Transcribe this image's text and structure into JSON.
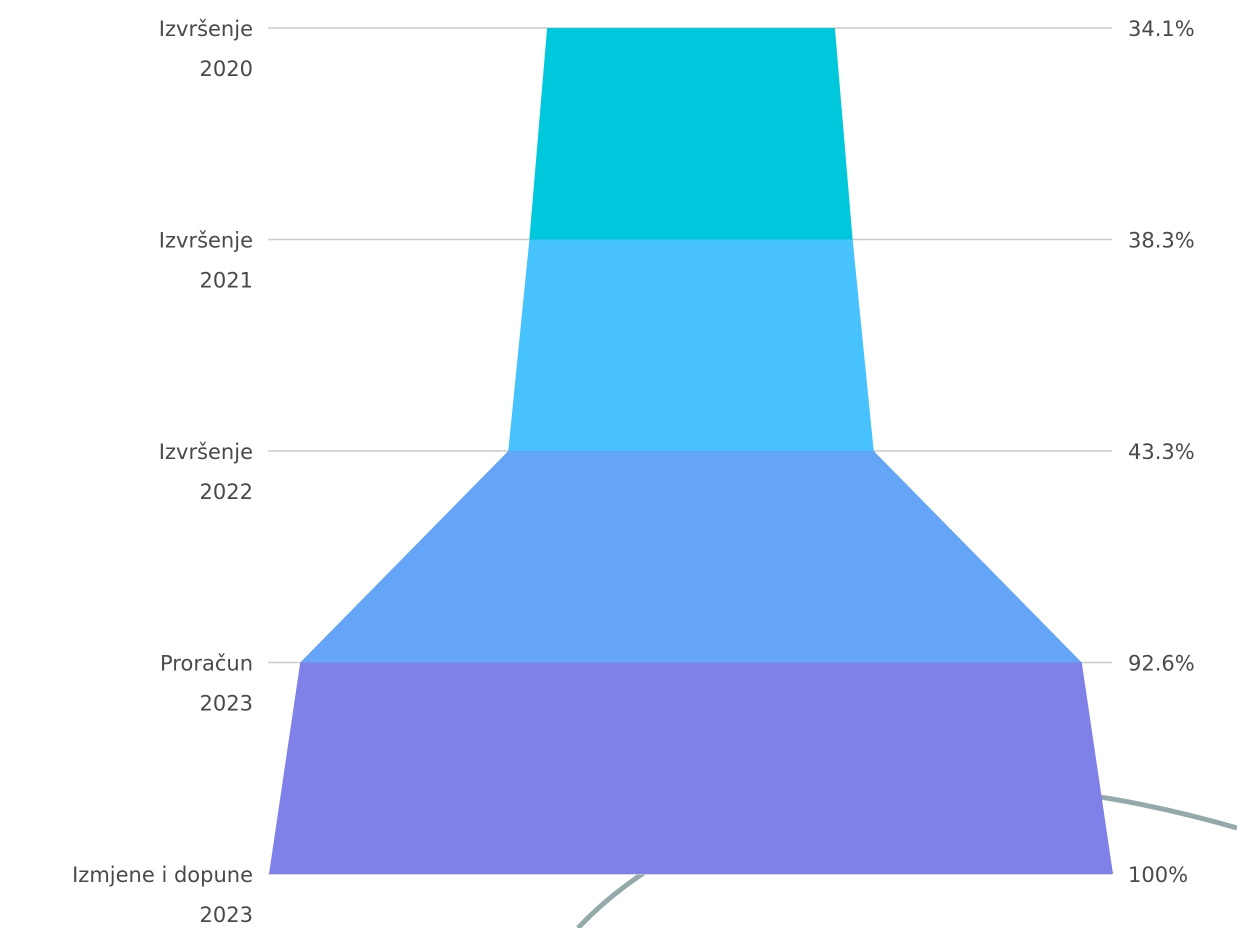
{
  "chart_data": {
    "type": "funnel",
    "categories": [
      [
        "Izvršenje",
        "2020"
      ],
      [
        "Izvršenje",
        "2021"
      ],
      [
        "Izvršenje",
        "2022"
      ],
      [
        "Proračun",
        "2023"
      ],
      [
        "Izmjene i dopune",
        "2023"
      ]
    ],
    "percent_labels": [
      "34.1%",
      "38.3%",
      "43.3%",
      "92.6%",
      "100%"
    ],
    "values": [
      34.1,
      38.3,
      43.3,
      92.6,
      100
    ],
    "colors": [
      "#00c8dc",
      "#48c2fc",
      "#64a5f8",
      "#7f80e8"
    ],
    "decoration_color": "#93a9aa"
  }
}
